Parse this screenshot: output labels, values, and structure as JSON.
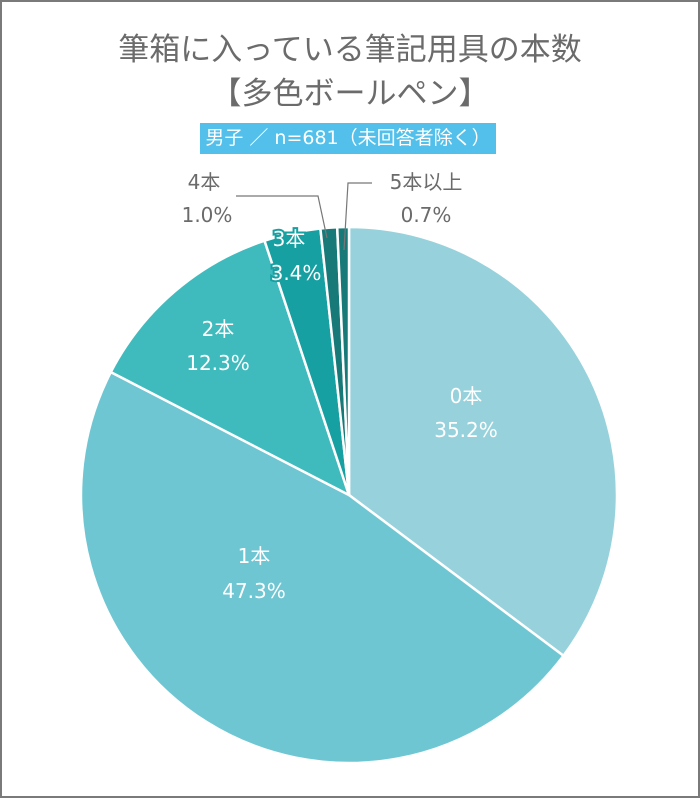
{
  "chart": {
    "title_line1": "筆箱に入っている筆記用具の本数",
    "title_line2": "【多色ボールペン】",
    "subtitle": "男子 ／ n=681（未回答者除く）"
  },
  "labels": {
    "s0": {
      "name": "0本",
      "pct": "35.2%"
    },
    "s1": {
      "name": "1本",
      "pct": "47.3%"
    },
    "s2": {
      "name": "2本",
      "pct": "12.3%"
    },
    "s3": {
      "name": "3本",
      "pct": "3.4%"
    },
    "s4": {
      "name": "4本",
      "pct": "1.0%"
    },
    "s5": {
      "name": "5本以上",
      "pct": "0.7%"
    }
  },
  "chart_data": {
    "type": "pie",
    "title": "筆箱に入っている筆記用具の本数【多色ボールペン】",
    "subtitle": "男子 ／ n=681（未回答者除く）",
    "categories": [
      "0本",
      "1本",
      "2本",
      "3本",
      "4本",
      "5本以上"
    ],
    "values": [
      35.2,
      47.3,
      12.3,
      3.4,
      1.0,
      0.7
    ],
    "unit": "%",
    "colors": [
      "#97d2dc",
      "#6fc6d3",
      "#3fbbbe",
      "#17a0a2",
      "#177a79",
      "#177a79"
    ],
    "start_angle": "12 o'clock",
    "direction": "clockwise",
    "legend": "none (direct labels)"
  }
}
